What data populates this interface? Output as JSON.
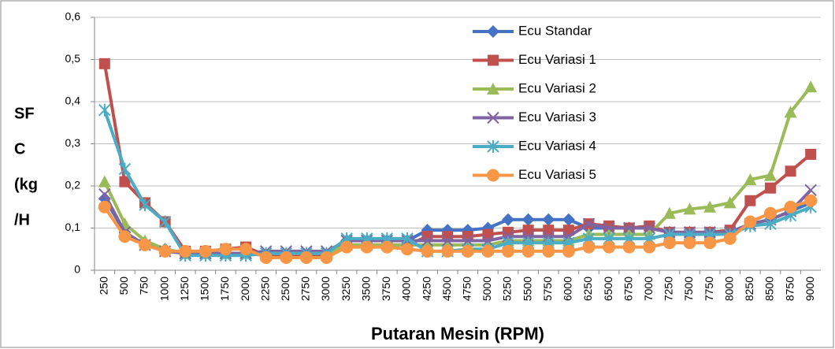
{
  "chart_data": {
    "type": "line",
    "y_label": [
      "SF",
      "C",
      "(kg",
      "/H"
    ],
    "x_label": "Putaran Mesin (RPM)",
    "categories": [
      "250",
      "500",
      "750",
      "1000",
      "1250",
      "1500",
      "1750",
      "2000",
      "2250",
      "2500",
      "2750",
      "3000",
      "3250",
      "3500",
      "3750",
      "4000",
      "4250",
      "4500",
      "4750",
      "5000",
      "5250",
      "5500",
      "5750",
      "6000",
      "6250",
      "6500",
      "6750",
      "7000",
      "7250",
      "7500",
      "7750",
      "8000",
      "8250",
      "8500",
      "8750",
      "9000"
    ],
    "ylim": [
      0,
      0.6
    ],
    "yticks": [
      0,
      {
        "value": 0.1,
        "label": "0,1"
      },
      {
        "value": 0.2,
        "label": "0,2"
      },
      {
        "value": 0.3,
        "label": "0,3"
      },
      {
        "value": 0.4,
        "label": "0,4"
      },
      {
        "value": 0.5,
        "label": "0,5"
      },
      {
        "value": 0.6,
        "label": "0,6"
      }
    ],
    "grid": true,
    "legend": "inside-top",
    "series": [
      {
        "name": "Ecu Standar",
        "color": "#4472c4",
        "marker": "diamond",
        "values": [
          0.17,
          0.09,
          0.06,
          0.05,
          0.04,
          0.04,
          0.04,
          0.04,
          0.035,
          0.035,
          0.035,
          0.035,
          0.07,
          0.07,
          0.07,
          0.07,
          0.095,
          0.095,
          0.095,
          0.1,
          0.12,
          0.12,
          0.12,
          0.12,
          0.1,
          0.1,
          0.1,
          0.1,
          0.09,
          0.09,
          0.09,
          0.09,
          0.11,
          0.12,
          0.14,
          0.16
        ]
      },
      {
        "name": "Ecu Variasi 1",
        "color": "#c0504d",
        "marker": "square",
        "values": [
          0.49,
          0.21,
          0.16,
          0.115,
          0.045,
          0.045,
          0.05,
          0.055,
          0.035,
          0.035,
          0.035,
          0.035,
          0.06,
          0.06,
          0.06,
          0.06,
          0.08,
          0.08,
          0.08,
          0.085,
          0.09,
          0.095,
          0.095,
          0.095,
          0.11,
          0.105,
          0.1,
          0.105,
          0.09,
          0.09,
          0.09,
          0.095,
          0.165,
          0.195,
          0.235,
          0.275
        ]
      },
      {
        "name": "Ecu Variasi 2",
        "color": "#9bbb59",
        "marker": "triangle",
        "values": [
          0.21,
          0.11,
          0.07,
          0.05,
          0.04,
          0.04,
          0.04,
          0.04,
          0.04,
          0.04,
          0.04,
          0.04,
          0.06,
          0.06,
          0.06,
          0.06,
          0.06,
          0.06,
          0.06,
          0.06,
          0.07,
          0.07,
          0.07,
          0.07,
          0.085,
          0.085,
          0.085,
          0.085,
          0.135,
          0.145,
          0.15,
          0.16,
          0.215,
          0.225,
          0.375,
          0.435
        ]
      },
      {
        "name": "Ecu Variasi 3",
        "color": "#8064a2",
        "marker": "x",
        "values": [
          0.18,
          0.09,
          0.06,
          0.045,
          0.04,
          0.04,
          0.04,
          0.04,
          0.045,
          0.045,
          0.045,
          0.045,
          0.07,
          0.07,
          0.07,
          0.07,
          0.07,
          0.07,
          0.07,
          0.07,
          0.08,
          0.08,
          0.08,
          0.08,
          0.11,
          0.1,
          0.1,
          0.1,
          0.09,
          0.09,
          0.09,
          0.09,
          0.11,
          0.12,
          0.14,
          0.19
        ]
      },
      {
        "name": "Ecu Variasi 4",
        "color": "#4bacc6",
        "marker": "star",
        "values": [
          0.38,
          0.24,
          0.155,
          0.115,
          0.035,
          0.035,
          0.035,
          0.035,
          0.04,
          0.04,
          0.04,
          0.04,
          0.075,
          0.075,
          0.075,
          0.075,
          0.045,
          0.045,
          0.05,
          0.05,
          0.065,
          0.065,
          0.065,
          0.065,
          0.075,
          0.075,
          0.075,
          0.075,
          0.085,
          0.085,
          0.085,
          0.085,
          0.105,
          0.11,
          0.13,
          0.15
        ]
      },
      {
        "name": "Ecu Variasi 5",
        "color": "#f79646",
        "marker": "circle",
        "values": [
          0.15,
          0.08,
          0.06,
          0.045,
          0.045,
          0.045,
          0.05,
          0.05,
          0.03,
          0.03,
          0.03,
          0.03,
          0.055,
          0.055,
          0.055,
          0.05,
          0.045,
          0.045,
          0.045,
          0.045,
          0.045,
          0.045,
          0.045,
          0.045,
          0.055,
          0.055,
          0.055,
          0.055,
          0.065,
          0.065,
          0.065,
          0.075,
          0.115,
          0.135,
          0.15,
          0.165
        ]
      }
    ]
  }
}
